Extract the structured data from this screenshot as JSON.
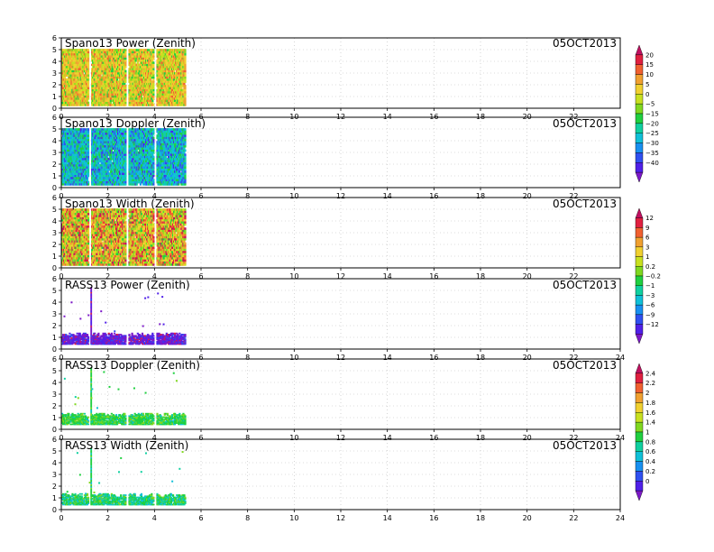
{
  "chart_data": {
    "type": "heatmap",
    "date": "05OCT2013",
    "panels": [
      {
        "title": "Spano13 Power (Zenith)",
        "kind": "spano",
        "palette": "power",
        "x_ticks": [
          0,
          2,
          4,
          6,
          8,
          10,
          12,
          14,
          16,
          18,
          20,
          22
        ]
      },
      {
        "title": "Spano13 Doppler (Zenith)",
        "kind": "spano",
        "palette": "doppler",
        "x_ticks": [
          0,
          2,
          4,
          6,
          8,
          10,
          12,
          14,
          16,
          18,
          20,
          22
        ]
      },
      {
        "title": "Spano13 Width (Zenith)",
        "kind": "spano",
        "palette": "width",
        "x_ticks": [
          0,
          2,
          4,
          6,
          8,
          10,
          12,
          14,
          16,
          18,
          20,
          22
        ]
      },
      {
        "title": "RASS13 Power (Zenith)",
        "kind": "rass",
        "palette": "rpower",
        "x_ticks": [
          0,
          2,
          4,
          6,
          8,
          10,
          12,
          14,
          16,
          18,
          20,
          22,
          24
        ]
      },
      {
        "title": "RASS13 Doppler (Zenith)",
        "kind": "rass",
        "palette": "rdoppler",
        "x_ticks": [
          0,
          2,
          4,
          6,
          8,
          10,
          12,
          14,
          16,
          18,
          20,
          22,
          24
        ]
      },
      {
        "title": "RASS13 Width (Zenith)",
        "kind": "rass",
        "palette": "rwidth",
        "x_ticks": [
          0,
          2,
          4,
          6,
          8,
          10,
          12,
          14,
          16,
          18,
          20,
          22,
          24
        ]
      }
    ],
    "x_range": [
      0,
      24
    ],
    "y_range": [
      0,
      6
    ],
    "y_ticks": [
      0,
      1,
      2,
      3,
      4,
      5,
      6
    ],
    "data_extent": {
      "spano_x_end": 5.3,
      "spano_y_top": 5.0,
      "rass_x_end": 5.3,
      "rass_y_band": [
        0.4,
        1.3
      ],
      "rass_spike_x": 1.25,
      "rass_spike_top": 5.2
    },
    "gaps_x": [
      1.2,
      2.8,
      4.0
    ],
    "grid": "dotted",
    "colorbars": [
      {
        "name": "cb-power-doppler",
        "labels": [
          "20",
          "15",
          "10",
          "5",
          "0",
          "−5",
          "−15",
          "−20",
          "−25",
          "−30",
          "−35",
          "−40"
        ]
      },
      {
        "name": "cb-width",
        "labels": [
          "12",
          "9",
          "6",
          "3",
          "1",
          "0.2",
          "−0.2",
          "−1",
          "−3",
          "−6",
          "−9",
          "−12"
        ]
      },
      {
        "name": "cb-rass",
        "labels": [
          "2.4",
          "2.2",
          "2",
          "1.8",
          "1.6",
          "1.4",
          "1",
          "0.8",
          "0.6",
          "0.4",
          "0.2",
          "0"
        ]
      }
    ],
    "palette_colors": [
      "#7c18c8",
      "#5020e8",
      "#3050f0",
      "#1890f0",
      "#10c0d8",
      "#10d0a0",
      "#20d040",
      "#80d820",
      "#c8e020",
      "#f0d030",
      "#f0a030",
      "#f06030",
      "#e02040",
      "#c01060"
    ]
  }
}
